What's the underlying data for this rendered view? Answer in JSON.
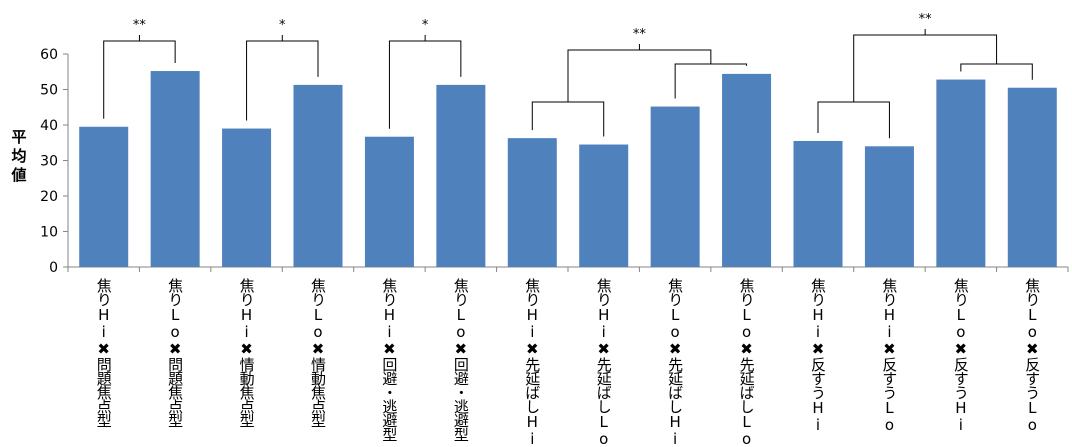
{
  "chart_data": {
    "type": "bar",
    "title": "",
    "xlabel": "",
    "ylabel": "平均値",
    "ylim": [
      0,
      60
    ],
    "yticks": [
      0,
      10,
      20,
      30,
      40,
      50,
      60
    ],
    "grid": false,
    "bar_color": "#4f81bd",
    "categories": [
      "焦りHi✖問題焦点型",
      "焦りLo✖問題焦点型",
      "焦りHi✖情動焦点型",
      "焦りLo✖情動焦点型",
      "焦りHi✖回避・逃避型",
      "焦りLo✖回避・逃避型",
      "焦りHi✖先延ばしHi",
      "焦りHi✖先延ばしLo",
      "焦りLo✖先延ばしHi",
      "焦りLo✖先延ばしLo",
      "焦りHi✖反すうHi",
      "焦りHi✖反すうLo",
      "焦りLo✖反すうHi",
      "焦りLo✖反すうLo"
    ],
    "values": [
      39.5,
      55.2,
      39.0,
      51.3,
      36.7,
      51.3,
      36.3,
      34.5,
      45.2,
      54.4,
      35.5,
      34.0,
      52.8,
      50.5
    ],
    "annotations": [
      {
        "label": "**",
        "left": [
          0
        ],
        "right": [
          1
        ]
      },
      {
        "label": "*",
        "left": [
          2
        ],
        "right": [
          3
        ]
      },
      {
        "label": "*",
        "left": [
          4
        ],
        "right": [
          5
        ]
      },
      {
        "label": "**",
        "left": [
          6,
          7
        ],
        "right": [
          8,
          9
        ],
        "right_inner": [
          8,
          9
        ]
      },
      {
        "label": "**",
        "left": [
          10,
          11
        ],
        "right": [
          12,
          13
        ],
        "right_inner": [
          12,
          13
        ]
      }
    ]
  }
}
